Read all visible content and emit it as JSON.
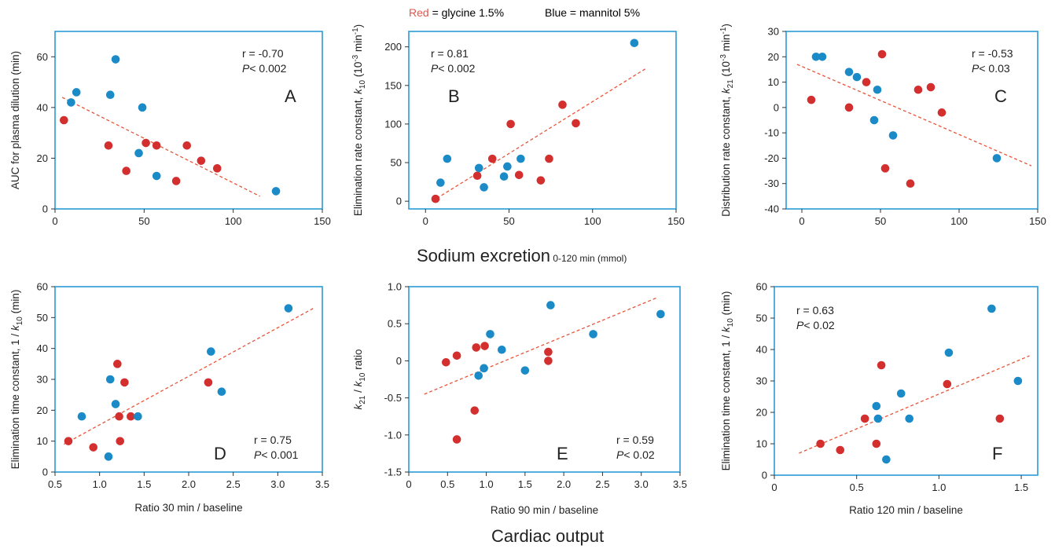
{
  "legend": {
    "red_label": "Red",
    "red_text": " = glycine 1.5%",
    "blue_text": "Blue = mannitol 5%"
  },
  "group_labels": [
    {
      "main": "Sodium excretion",
      "sub": " 0-120 min (mmol)"
    },
    {
      "main": "Cardiac output",
      "sub": ""
    }
  ],
  "colors": {
    "red": "#d32f2f",
    "blue": "#1a8bc7",
    "frame": "#2b9bd6",
    "fit": "#e8553a",
    "legend_red": "#e0574a"
  },
  "chart_data": [
    {
      "type": "scatter",
      "panel": "A",
      "ylabel": "AUC for plasma dilution (min)",
      "xlabel": "",
      "xlim": [
        0,
        150
      ],
      "ylim": [
        0,
        70
      ],
      "xticks": [
        "0",
        "50",
        "100",
        "150"
      ],
      "xtick_values": [
        0,
        50,
        100,
        150
      ],
      "yticks": [
        "0",
        "20",
        "40",
        "60"
      ],
      "ytick_values": [
        0,
        20,
        40,
        60
      ],
      "stat_r": "r = -0.70",
      "stat_p_italic": "P",
      "stat_p_rest": "< 0.002",
      "fit": [
        [
          4,
          44
        ],
        [
          115,
          5
        ]
      ],
      "series": [
        {
          "group": "red",
          "points": [
            [
              5,
              35
            ],
            [
              30,
              25
            ],
            [
              40,
              15
            ],
            [
              51,
              26
            ],
            [
              57,
              25
            ],
            [
              68,
              11
            ],
            [
              74,
              25
            ],
            [
              82,
              19
            ],
            [
              91,
              16
            ]
          ]
        },
        {
          "group": "blue",
          "points": [
            [
              9,
              42
            ],
            [
              12,
              46
            ],
            [
              31,
              45
            ],
            [
              34,
              59
            ],
            [
              47,
              22
            ],
            [
              49,
              40
            ],
            [
              57,
              13
            ],
            [
              124,
              7
            ]
          ]
        }
      ]
    },
    {
      "type": "scatter",
      "panel": "B",
      "ylabel_parts": [
        "Elimination rate constant, ",
        "k",
        "10",
        " (10",
        "-3",
        " min",
        "-1",
        ")"
      ],
      "xlabel": "",
      "xlim": [
        -10,
        150
      ],
      "ylim": [
        -10,
        220
      ],
      "xticks": [
        "0",
        "50",
        "100",
        "150"
      ],
      "xtick_values": [
        0,
        50,
        100,
        150
      ],
      "yticks": [
        "0",
        "50",
        "100",
        "150",
        "200"
      ],
      "ytick_values": [
        0,
        50,
        100,
        150,
        200
      ],
      "stat_r": "r = 0.81",
      "stat_p_italic": "P",
      "stat_p_rest": "< 0.002",
      "fit": [
        [
          4,
          0
        ],
        [
          132,
          172
        ]
      ],
      "series": [
        {
          "group": "red",
          "points": [
            [
              6,
              3
            ],
            [
              31,
              33
            ],
            [
              40,
              55
            ],
            [
              51,
              100
            ],
            [
              56,
              34
            ],
            [
              69,
              27
            ],
            [
              74,
              55
            ],
            [
              82,
              125
            ],
            [
              90,
              101
            ]
          ]
        },
        {
          "group": "blue",
          "points": [
            [
              9,
              24
            ],
            [
              13,
              55
            ],
            [
              32,
              43
            ],
            [
              35,
              18
            ],
            [
              47,
              32
            ],
            [
              49,
              45
            ],
            [
              57,
              55
            ],
            [
              125,
              205
            ]
          ]
        }
      ]
    },
    {
      "type": "scatter",
      "panel": "C",
      "ylabel_parts": [
        "Distribution rate constant, ",
        "k",
        "21",
        " (10",
        "-3",
        " min",
        "-1",
        ")"
      ],
      "xlabel": "",
      "xlim": [
        -10,
        150
      ],
      "ylim": [
        -40,
        30
      ],
      "xticks": [
        "0",
        "50",
        "100",
        "150"
      ],
      "xtick_values": [
        0,
        50,
        100,
        150
      ],
      "yticks": [
        "-40",
        "-30",
        "-20",
        "-10",
        "0",
        "10",
        "20",
        "30"
      ],
      "ytick_values": [
        -40,
        -30,
        -20,
        -10,
        0,
        10,
        20,
        30
      ],
      "stat_r": "r = -0.53",
      "stat_p_italic": "P",
      "stat_p_rest": "< 0.03",
      "fit": [
        [
          -3,
          17
        ],
        [
          146,
          -23
        ]
      ],
      "series": [
        {
          "group": "red",
          "points": [
            [
              6,
              3
            ],
            [
              30,
              0
            ],
            [
              41,
              10
            ],
            [
              51,
              21
            ],
            [
              53,
              -24
            ],
            [
              69,
              -30
            ],
            [
              74,
              7
            ],
            [
              82,
              8
            ],
            [
              89,
              -2
            ]
          ]
        },
        {
          "group": "blue",
          "points": [
            [
              9,
              20
            ],
            [
              13,
              20
            ],
            [
              30,
              14
            ],
            [
              35,
              12
            ],
            [
              46,
              -5
            ],
            [
              48,
              7
            ],
            [
              58,
              -11
            ],
            [
              124,
              -20
            ]
          ]
        }
      ]
    },
    {
      "type": "scatter",
      "panel": "D",
      "ylabel_parts": [
        "Elimination time constant, 1 / ",
        "k",
        "10",
        " (min)"
      ],
      "xlabel": "Ratio 30 min / baseline",
      "xlim": [
        0.5,
        3.5
      ],
      "ylim": [
        0,
        60
      ],
      "xticks": [
        "0.5",
        "1.0",
        "1.5",
        "2.0",
        "2.5",
        "3.0",
        "3.5"
      ],
      "xtick_values": [
        0.5,
        1.0,
        1.5,
        2.0,
        2.5,
        3.0,
        3.5
      ],
      "yticks": [
        "0",
        "10",
        "20",
        "30",
        "40",
        "50",
        "60"
      ],
      "ytick_values": [
        0,
        10,
        20,
        30,
        40,
        50,
        60
      ],
      "stat_r": "r = 0.75",
      "stat_p_italic": "P",
      "stat_p_rest": "< 0.001",
      "fit": [
        [
          0.6,
          9
        ],
        [
          3.4,
          53
        ]
      ],
      "series": [
        {
          "group": "red",
          "points": [
            [
              0.65,
              10
            ],
            [
              0.93,
              8
            ],
            [
              1.2,
              35
            ],
            [
              1.22,
              18
            ],
            [
              1.23,
              10
            ],
            [
              1.28,
              29
            ],
            [
              1.35,
              18
            ],
            [
              2.22,
              29
            ]
          ]
        },
        {
          "group": "blue",
          "points": [
            [
              0.8,
              18
            ],
            [
              1.1,
              5
            ],
            [
              1.12,
              30
            ],
            [
              1.18,
              22
            ],
            [
              1.43,
              18
            ],
            [
              2.25,
              39
            ],
            [
              2.37,
              26
            ],
            [
              3.12,
              53
            ]
          ]
        }
      ]
    },
    {
      "type": "scatter",
      "panel": "E",
      "ylabel_parts": [
        "k",
        "21",
        " / ",
        "k",
        "10",
        " ratio"
      ],
      "xlabel": "Ratio 90 min / baseline",
      "xlim": [
        0,
        3.5
      ],
      "ylim": [
        -1.5,
        1.0
      ],
      "xticks": [
        "0",
        "0.5",
        "1.0",
        "1.5",
        "2.0",
        "2.5",
        "3.0",
        "3.5"
      ],
      "xtick_values": [
        0,
        0.5,
        1.0,
        1.5,
        2.0,
        2.5,
        3.0,
        3.5
      ],
      "yticks": [
        "-1.5",
        "-1.0",
        "-0.5",
        "0",
        "0.5",
        "1.0"
      ],
      "ytick_values": [
        -1.5,
        -1.0,
        -0.5,
        0,
        0.5,
        1.0
      ],
      "stat_r": "r = 0.59",
      "stat_p_italic": "P",
      "stat_p_rest": "< 0.02",
      "fit": [
        [
          0.2,
          -0.45
        ],
        [
          3.2,
          0.85
        ]
      ],
      "series": [
        {
          "group": "red",
          "points": [
            [
              0.48,
              -0.02
            ],
            [
              0.62,
              0.07
            ],
            [
              0.62,
              -1.06
            ],
            [
              0.85,
              -0.67
            ],
            [
              0.87,
              0.18
            ],
            [
              0.98,
              0.2
            ],
            [
              1.8,
              0.12
            ],
            [
              1.8,
              0.0
            ]
          ]
        },
        {
          "group": "blue",
          "points": [
            [
              0.9,
              -0.2
            ],
            [
              0.97,
              -0.1
            ],
            [
              1.05,
              0.36
            ],
            [
              1.2,
              0.15
            ],
            [
              1.5,
              -0.13
            ],
            [
              1.83,
              0.75
            ],
            [
              2.38,
              0.36
            ],
            [
              3.25,
              0.63
            ]
          ]
        }
      ]
    },
    {
      "type": "scatter",
      "panel": "F",
      "ylabel_parts": [
        "Elimination time constant, 1 / ",
        "k",
        "10",
        " (min)"
      ],
      "xlabel": "Ratio 120 min / baseline",
      "xlim": [
        0,
        1.6
      ],
      "ylim": [
        0,
        60
      ],
      "xticks": [
        "0",
        "0.5",
        "1.0",
        "1.5"
      ],
      "xtick_values": [
        0,
        0.5,
        1.0,
        1.5
      ],
      "yticks": [
        "0",
        "10",
        "20",
        "30",
        "40",
        "50",
        "60"
      ],
      "ytick_values": [
        0,
        10,
        20,
        30,
        40,
        50,
        60
      ],
      "stat_r": "r = 0.63",
      "stat_p_italic": "P",
      "stat_p_rest": "< 0.02",
      "fit": [
        [
          0.15,
          7
        ],
        [
          1.55,
          38
        ]
      ],
      "series": [
        {
          "group": "red",
          "points": [
            [
              0.28,
              10
            ],
            [
              0.4,
              8
            ],
            [
              0.55,
              18
            ],
            [
              0.62,
              10
            ],
            [
              0.65,
              35
            ],
            [
              1.05,
              29
            ],
            [
              1.37,
              18
            ]
          ]
        },
        {
          "group": "blue",
          "points": [
            [
              0.62,
              22
            ],
            [
              0.63,
              18
            ],
            [
              0.68,
              5
            ],
            [
              0.77,
              26
            ],
            [
              0.82,
              18
            ],
            [
              1.06,
              39
            ],
            [
              1.32,
              53
            ],
            [
              1.48,
              30
            ]
          ]
        }
      ]
    }
  ]
}
